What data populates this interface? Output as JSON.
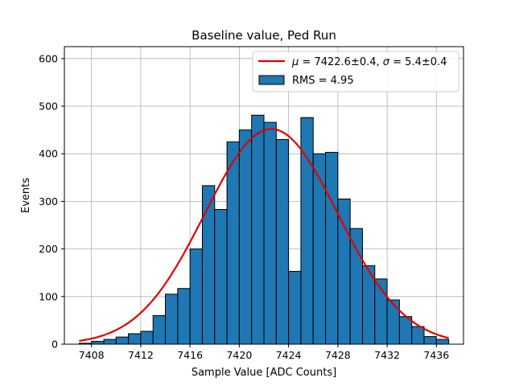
{
  "chart_data": {
    "type": "bar",
    "title": "Baseline value, Ped Run",
    "xlabel": "Sample Value [ADC Counts]",
    "ylabel": "Events",
    "xlim": [
      7405.8,
      7438.2
    ],
    "ylim": [
      0,
      625
    ],
    "grid": true,
    "legend_placement": "top-right",
    "x_ticks": [
      7408,
      7412,
      7416,
      7420,
      7424,
      7428,
      7432,
      7436
    ],
    "y_ticks": [
      0,
      100,
      200,
      300,
      400,
      500,
      600
    ],
    "bin_width": 1,
    "bin_edges_start": 7407,
    "histogram": {
      "name": "RMS = 4.95",
      "color": "#1f77b4",
      "values": [
        2,
        6,
        10,
        15,
        22,
        27,
        60,
        105,
        117,
        200,
        333,
        283,
        425,
        450,
        481,
        466,
        430,
        153,
        476,
        400,
        403,
        305,
        243,
        165,
        137,
        93,
        58,
        37,
        16,
        10
      ]
    },
    "fit": {
      "name_parts": [
        "μ",
        " = 7422.6±0.4, ",
        "σ",
        " = 5.4±0.4"
      ],
      "color": "#e00000",
      "mu": 7422.6,
      "sigma": 5.4,
      "amplitude": 452,
      "x_range": [
        7407,
        7437
      ]
    }
  }
}
